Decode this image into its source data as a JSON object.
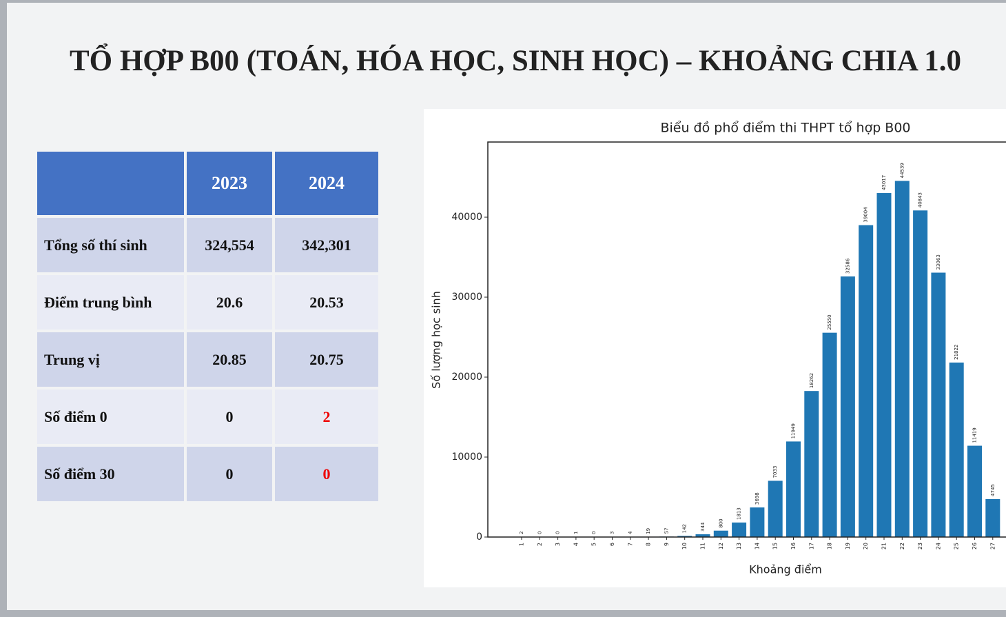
{
  "title": "TỔ HỢP B00 (TOÁN, HÓA HỌC, SINH HỌC) – KHOẢNG CHIA 1.0",
  "table": {
    "header": [
      "2023",
      "2024"
    ],
    "rows": [
      [
        "Tổng số thí sinh",
        "324,554",
        "342,301"
      ],
      [
        "Điểm trung bình",
        "20.6",
        "20.53"
      ],
      [
        "Trung vị",
        "20.85",
        "20.75"
      ],
      [
        "Số điểm 0",
        "0",
        "2"
      ],
      [
        "Số điểm 30",
        "0",
        "0"
      ]
    ]
  },
  "chart_data": {
    "type": "bar",
    "title": "Biểu đồ phổ điểm thi THPT tổ hợp B00",
    "x_label": "Khoảng điểm",
    "y_label": "Số lượng học sinh",
    "categories": [
      "1",
      "2",
      "3",
      "4",
      "5",
      "6",
      "7",
      "8",
      "9",
      "10",
      "11",
      "12",
      "13",
      "14",
      "15",
      "16",
      "17",
      "18",
      "19",
      "20",
      "21",
      "22",
      "23",
      "24",
      "25",
      "26",
      "27"
    ],
    "values": [
      2,
      0,
      0,
      1,
      0,
      3,
      4,
      19,
      57,
      142,
      344,
      800,
      1813,
      3698,
      7033,
      11949,
      18262,
      25550,
      32586,
      39004,
      43017,
      44539,
      40843,
      33063,
      21822,
      11419,
      4745
    ],
    "color": "#1f77b4",
    "ylim": [
      0,
      49400
    ],
    "yticks": [
      0,
      10000,
      20000,
      30000,
      40000
    ]
  }
}
